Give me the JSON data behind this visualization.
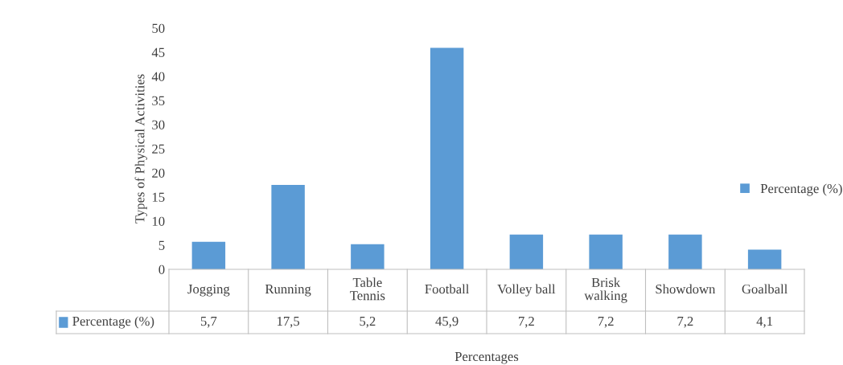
{
  "chart_data": {
    "type": "bar",
    "xlabel": "Percentages",
    "ylabel": "Types of Physical Activities",
    "categories": [
      "Jogging",
      "Running",
      "Table Tennis",
      "Football",
      "Volley ball",
      "Brisk walking",
      "Showdown",
      "Goalball"
    ],
    "series": [
      {
        "name": "Percentage (%)",
        "color": "#5b9bd5",
        "values": [
          5.7,
          17.5,
          5.2,
          45.9,
          7.2,
          7.2,
          7.2,
          4.1
        ],
        "value_labels": [
          "5,7",
          "17,5",
          "5,2",
          "45,9",
          "7,2",
          "7,2",
          "7,2",
          "4,1"
        ]
      }
    ],
    "ylim": [
      0,
      50
    ],
    "yticks": [
      0,
      5,
      10,
      15,
      20,
      25,
      30,
      35,
      40,
      45,
      50
    ],
    "grid": false,
    "legend": "right"
  }
}
